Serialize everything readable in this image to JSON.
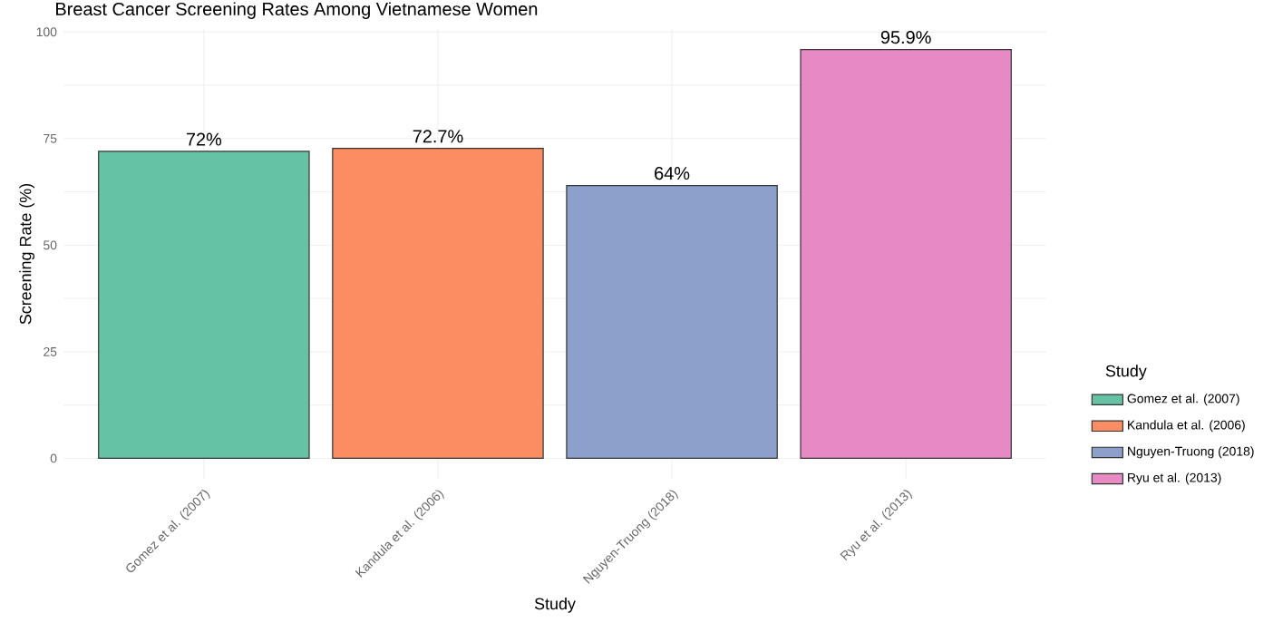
{
  "chart_data": {
    "type": "bar",
    "title": "Breast Cancer Screening Rates Among Vietnamese Women",
    "xlabel": "Study",
    "ylabel": "Screening Rate (%)",
    "legend_title": "Study",
    "categories": [
      "Gomez et al. (2007)",
      "Kandula et al. (2006)",
      "Nguyen-Truong (2018)",
      "Ryu et al. (2013)"
    ],
    "series": [
      {
        "name": "Gomez et al. (2007)",
        "color": "#66c2a5",
        "values": [
          72,
          null,
          null,
          null
        ],
        "value_labels": [
          "72%",
          null,
          null,
          null
        ]
      },
      {
        "name": "Kandula et al. (2006)",
        "color": "#fc8d62",
        "values": [
          null,
          72.7,
          null,
          null
        ],
        "value_labels": [
          null,
          "72.7%",
          null,
          null
        ]
      },
      {
        "name": "Nguyen-Truong (2018)",
        "color": "#8da0cb",
        "values": [
          null,
          null,
          64,
          null
        ],
        "value_labels": [
          null,
          null,
          "64%",
          null
        ]
      },
      {
        "name": "Ryu et al. (2013)",
        "color": "#e78ac3",
        "values": [
          null,
          null,
          null,
          95.9
        ],
        "value_labels": [
          null,
          null,
          null,
          "95.9%"
        ]
      }
    ],
    "ylim": [
      -4.8,
      100.7
    ],
    "yticks": [
      0,
      {
        "value": 12.5,
        "label": null
      },
      25,
      {
        "value": 37.5,
        "label": null
      },
      50,
      {
        "value": 62.5,
        "label": null
      },
      75,
      {
        "value": 87.5,
        "label": null
      },
      100
    ],
    "grid": true,
    "legend": "right"
  }
}
